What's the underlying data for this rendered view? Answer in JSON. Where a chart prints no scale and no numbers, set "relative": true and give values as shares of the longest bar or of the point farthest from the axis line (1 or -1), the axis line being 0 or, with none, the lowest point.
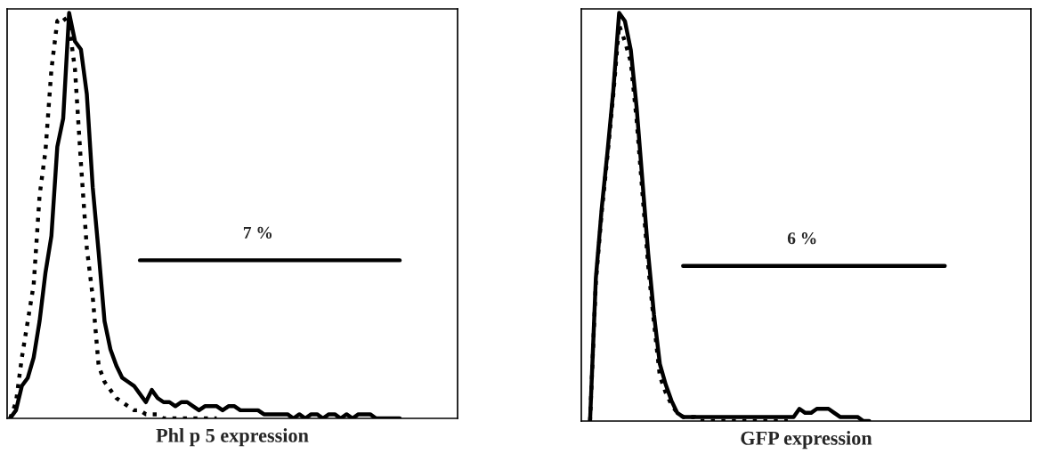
{
  "chart_data": [
    {
      "type": "line",
      "relative": true,
      "xlabel": "Phl p 5 expression",
      "categories": [
        null,
        null,
        null,
        null,
        null,
        null,
        null,
        null,
        null,
        null,
        null,
        null,
        null,
        null,
        null,
        null,
        null,
        null,
        null,
        null,
        null,
        null,
        null,
        null,
        null,
        null,
        null,
        null,
        null,
        null,
        null,
        null,
        null,
        null,
        null,
        null,
        null,
        null,
        null,
        null,
        null,
        null,
        null,
        null,
        null,
        null,
        null,
        null,
        null,
        null,
        null,
        null,
        null,
        null,
        null,
        null,
        null,
        null,
        null,
        null,
        null,
        null,
        null,
        null,
        null,
        null,
        null,
        null,
        null,
        null,
        null,
        null,
        null,
        null,
        null,
        null
      ],
      "series": [
        {
          "color": "#000000",
          "line_style": "solid",
          "values": [
            0,
            0.02,
            0.08,
            0.1,
            0.15,
            0.24,
            0.36,
            0.45,
            0.67,
            0.74,
            1.0,
            0.93,
            0.91,
            0.8,
            0.57,
            0.41,
            0.24,
            0.17,
            0.13,
            0.1,
            0.09,
            0.08,
            0.06,
            0.04,
            0.07,
            0.05,
            0.04,
            0.04,
            0.03,
            0.04,
            0.04,
            0.03,
            0.02,
            0.03,
            0.03,
            0.03,
            0.02,
            0.03,
            0.03,
            0.02,
            0.02,
            0.02,
            0.02,
            0.01,
            0.01,
            0.01,
            0.01,
            0.01,
            0,
            0.01,
            0,
            0.01,
            0.01,
            0,
            0.01,
            0.01,
            0,
            0.01,
            0,
            0.01,
            0.01,
            0.01,
            0,
            0,
            0,
            0,
            0,
            null,
            null,
            null,
            null,
            null,
            null,
            null,
            null,
            null
          ]
        },
        {
          "color": "#000000",
          "line_style": "dotted",
          "values": [
            0,
            0.04,
            0.15,
            0.24,
            0.33,
            0.55,
            0.66,
            0.86,
            0.98,
            0.99,
            0.97,
            0.86,
            0.63,
            0.42,
            0.3,
            0.13,
            0.09,
            0.07,
            0.05,
            0.04,
            0.03,
            0.02,
            0.02,
            0.01,
            0.01,
            0.01,
            0,
            0,
            0,
            0,
            0,
            0,
            0,
            0,
            0,
            0,
            null,
            null,
            null,
            null,
            null,
            null,
            null,
            null,
            null,
            null,
            null,
            null,
            null,
            null,
            null,
            null,
            null,
            null,
            null,
            null,
            null,
            null,
            null,
            null,
            null,
            null,
            null,
            null,
            null,
            null,
            null,
            null,
            null,
            null,
            null,
            null,
            null,
            null,
            null,
            null
          ]
        },
        {
          "type": "line",
          "color": "#000000",
          "line_style": "solid",
          "values": [
            null,
            null,
            null,
            null,
            null,
            null,
            null,
            null,
            null,
            null,
            null,
            null,
            null,
            null,
            null,
            null,
            null,
            null,
            null,
            null,
            null,
            null,
            0.39,
            0.39,
            0.39,
            0.39,
            0.39,
            0.39,
            0.39,
            0.39,
            0.39,
            0.39,
            0.39,
            0.39,
            0.39,
            0.39,
            0.39,
            0.39,
            0.39,
            0.39,
            0.39,
            0.39,
            0.39,
            0.39,
            0.39,
            0.39,
            0.39,
            0.39,
            0.39,
            0.39,
            0.39,
            0.39,
            0.39,
            0.39,
            0.39,
            0.39,
            0.39,
            0.39,
            0.39,
            0.39,
            0.39,
            0.39,
            0.39,
            0.39,
            0.39,
            0.39,
            0.39,
            null,
            null,
            null,
            null,
            null,
            null,
            null,
            null,
            null
          ]
        }
      ],
      "annotations": [
        "7 %"
      ]
    },
    {
      "type": "line",
      "relative": true,
      "xlabel": "GFP expression",
      "categories": [
        null,
        null,
        null,
        null,
        null,
        null,
        null,
        null,
        null,
        null,
        null,
        null,
        null,
        null,
        null,
        null,
        null,
        null,
        null,
        null,
        null,
        null,
        null,
        null,
        null,
        null,
        null,
        null,
        null,
        null,
        null,
        null,
        null,
        null,
        null,
        null,
        null,
        null,
        null,
        null,
        null,
        null,
        null,
        null,
        null,
        null,
        null,
        null,
        null,
        null,
        null,
        null,
        null,
        null,
        null,
        null,
        null,
        null,
        null,
        null,
        null,
        null,
        null,
        null,
        null,
        null,
        null,
        null,
        null,
        null,
        null,
        null,
        null,
        null,
        null,
        null,
        null
      ],
      "series": [
        {
          "color": "#000000",
          "line_style": "solid",
          "values": [
            null,
            0,
            0.35,
            0.52,
            0.66,
            0.81,
            1.0,
            0.98,
            0.91,
            0.77,
            0.59,
            0.41,
            0.26,
            0.14,
            0.09,
            0.05,
            0.02,
            0.01,
            0.01,
            0.01,
            0.01,
            0.01,
            0.01,
            0.01,
            0.01,
            0.01,
            0.01,
            0.01,
            0.01,
            0.01,
            0.01,
            0.01,
            0.01,
            0.01,
            0.01,
            0.01,
            0.01,
            0.03,
            0.02,
            0.02,
            0.03,
            0.03,
            0.03,
            0.02,
            0.01,
            0.01,
            0.01,
            0.01,
            0,
            0,
            null,
            null,
            null,
            null,
            null,
            null,
            null,
            null,
            null,
            null,
            null,
            null,
            null,
            null,
            null,
            null,
            null,
            null,
            null,
            null,
            null,
            null,
            null,
            null,
            null,
            null,
            null
          ]
        },
        {
          "color": "#000000",
          "line_style": "dotted",
          "values": [
            null,
            0,
            0.34,
            0.51,
            0.65,
            0.8,
            0.97,
            0.93,
            0.88,
            0.74,
            0.56,
            0.38,
            0.24,
            0.11,
            0.07,
            0.04,
            0.02,
            0.01,
            0.01,
            0.01,
            0,
            0,
            0,
            0,
            0,
            0,
            0,
            0,
            0,
            0,
            0,
            0,
            0,
            0,
            0,
            0,
            null,
            null,
            null,
            null,
            null,
            null,
            null,
            null,
            null,
            null,
            null,
            null,
            null,
            null,
            null,
            null,
            null,
            null,
            null,
            null,
            null,
            null,
            null,
            null,
            null,
            null,
            null,
            null,
            null,
            null,
            null,
            null,
            null,
            null,
            null,
            null,
            null,
            null,
            null,
            null,
            null
          ]
        },
        {
          "type": "line",
          "color": "#000000",
          "line_style": "solid",
          "values": [
            null,
            null,
            null,
            null,
            null,
            null,
            null,
            null,
            null,
            null,
            null,
            null,
            null,
            null,
            null,
            null,
            null,
            0.38,
            0.38,
            0.38,
            0.38,
            0.38,
            0.38,
            0.38,
            0.38,
            0.38,
            0.38,
            0.38,
            0.38,
            0.38,
            0.38,
            0.38,
            0.38,
            0.38,
            0.38,
            0.38,
            0.38,
            0.38,
            0.38,
            0.38,
            0.38,
            0.38,
            0.38,
            0.38,
            0.38,
            0.38,
            0.38,
            0.38,
            0.38,
            0.38,
            0.38,
            0.38,
            0.38,
            0.38,
            0.38,
            0.38,
            0.38,
            0.38,
            0.38,
            0.38,
            0.38,
            0.38,
            0.38,
            null,
            null,
            null,
            null,
            null,
            null,
            null,
            null,
            null,
            null,
            null,
            null,
            null,
            null
          ]
        }
      ],
      "annotations": [
        "6 %"
      ]
    }
  ]
}
